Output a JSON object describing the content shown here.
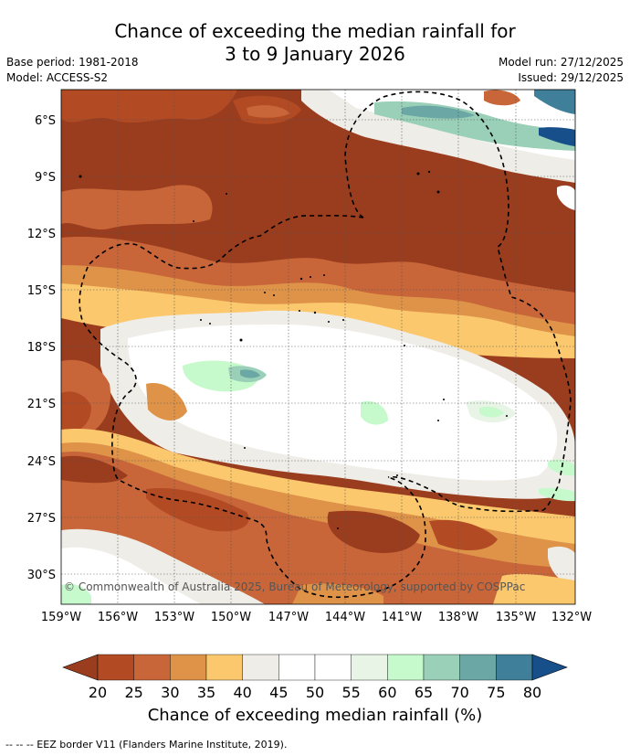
{
  "header": {
    "title_line1": "Chance of exceeding the median rainfall for",
    "title_line2": "3 to 9 January 2026",
    "base_period": "Base period: 1981-2018",
    "model": "Model: ACCESS-S2",
    "model_run": "Model run: 27/12/2025",
    "issued": "Issued: 29/12/2025"
  },
  "map": {
    "lat_labels": [
      "6°S",
      "9°S",
      "12°S",
      "15°S",
      "18°S",
      "21°S",
      "24°S",
      "27°S",
      "30°S"
    ],
    "lon_labels": [
      "159°W",
      "156°W",
      "153°W",
      "150°W",
      "147°W",
      "144°W",
      "141°W",
      "138°W",
      "135°W",
      "132°W"
    ],
    "copyright": "© Commonwealth of Australia 2025, Bureau of Meteorology, supported by COSPPac"
  },
  "colorbar": {
    "ticks": [
      "20",
      "25",
      "30",
      "35",
      "40",
      "45",
      "50",
      "55",
      "60",
      "65",
      "70",
      "75",
      "80"
    ],
    "colors": [
      "#9a3d1e",
      "#b24a24",
      "#c8663a",
      "#de9349",
      "#fbc86e",
      "#efede7",
      "#ffffff",
      "#ffffff",
      "#e7f4e6",
      "#c6f9cc",
      "#9acfb8",
      "#6aa7a5",
      "#3f7f99",
      "#174f8a"
    ],
    "label": "Chance of exceeding median rainfall (%)"
  },
  "footnote": "--  --  -- EEZ border V11 (Flanders Marine Institute, 2019)."
}
